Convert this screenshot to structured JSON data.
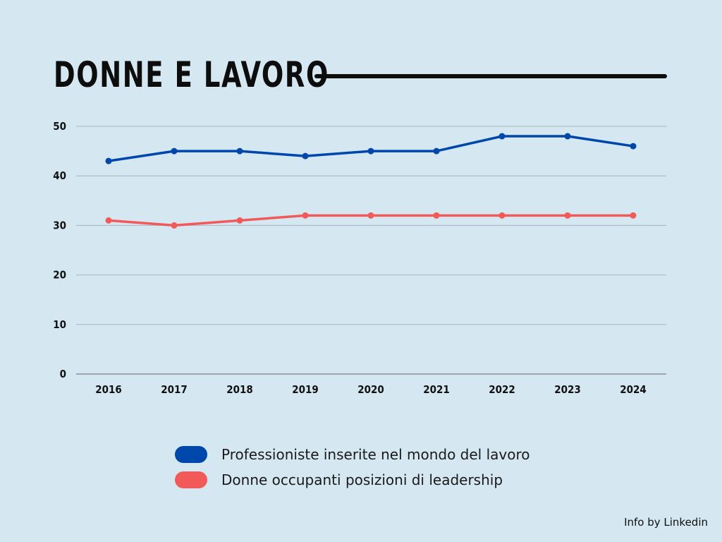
{
  "title": "DONNE E LAVORO",
  "source": "Info by Linkedin",
  "chart_data": {
    "type": "line",
    "title": "DONNE E LAVORO",
    "categories": [
      "2016",
      "2017",
      "2018",
      "2019",
      "2020",
      "2021",
      "2022",
      "2023",
      "2024"
    ],
    "yticks": [
      0,
      10,
      20,
      30,
      40,
      50
    ],
    "ylim": [
      0,
      50
    ],
    "grid": true,
    "legend_position": "bottom",
    "series": [
      {
        "name": "Professioniste inserite nel mondo del lavoro",
        "color": "#0047ab",
        "values": [
          43,
          45,
          45,
          44,
          45,
          45,
          48,
          48,
          46
        ]
      },
      {
        "name": "Donne occupanti posizioni di leadership",
        "color": "#f25a5a",
        "values": [
          31,
          30,
          31,
          32,
          32,
          32,
          32,
          32,
          32
        ]
      }
    ]
  }
}
